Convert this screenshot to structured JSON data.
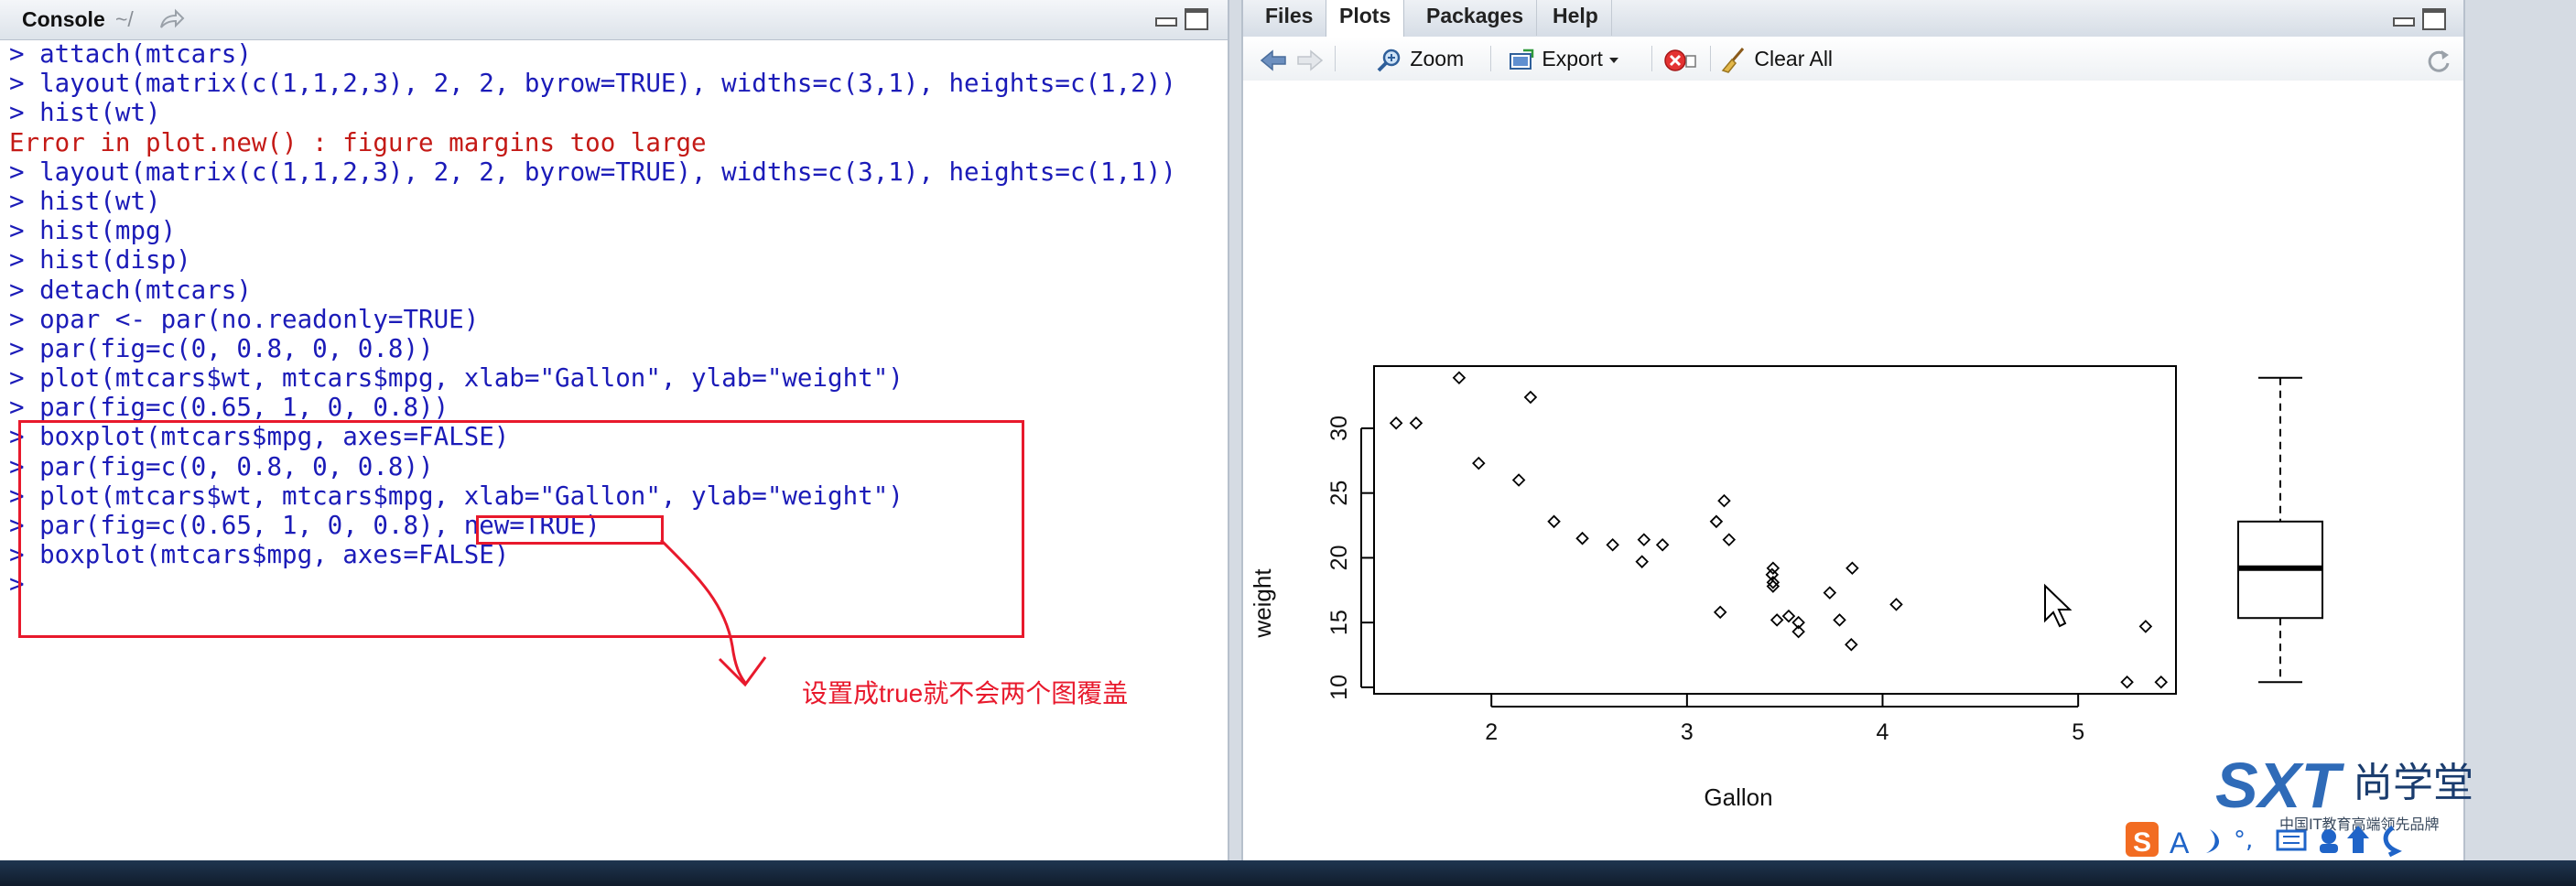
{
  "console": {
    "title": "Console",
    "path": "~/",
    "lines": [
      {
        "text": "> attach(mtcars)",
        "type": "cmd"
      },
      {
        "text": "> layout(matrix(c(1,1,2,3), 2, 2, byrow=TRUE), widths=c(3,1), heights=c(1,2))",
        "type": "cmd"
      },
      {
        "text": "> hist(wt)",
        "type": "cmd"
      },
      {
        "text": "Error in plot.new() : figure margins too large",
        "type": "err"
      },
      {
        "text": "> layout(matrix(c(1,1,2,3), 2, 2, byrow=TRUE), widths=c(3,1), heights=c(1,1))",
        "type": "cmd"
      },
      {
        "text": "> hist(wt)",
        "type": "cmd"
      },
      {
        "text": "> hist(mpg)",
        "type": "cmd"
      },
      {
        "text": "> hist(disp)",
        "type": "cmd"
      },
      {
        "text": "> detach(mtcars)",
        "type": "cmd"
      },
      {
        "text": "> opar <- par(no.readonly=TRUE)",
        "type": "cmd"
      },
      {
        "text": "> par(fig=c(0, 0.8, 0, 0.8))",
        "type": "cmd"
      },
      {
        "text": "> plot(mtcars$wt, mtcars$mpg, xlab=\"Gallon\", ylab=\"weight\")",
        "type": "cmd"
      },
      {
        "text": "> par(fig=c(0.65, 1, 0, 0.8))",
        "type": "cmd"
      },
      {
        "text": "> boxplot(mtcars$mpg, axes=FALSE)",
        "type": "cmd"
      },
      {
        "text": "> par(fig=c(0, 0.8, 0, 0.8))",
        "type": "cmd"
      },
      {
        "text": "> plot(mtcars$wt, mtcars$mpg, xlab=\"Gallon\", ylab=\"weight\")",
        "type": "cmd"
      },
      {
        "text": "> par(fig=c(0.65, 1, 0, 0.8), new=TRUE)",
        "type": "cmd"
      },
      {
        "text": "> boxplot(mtcars$mpg, axes=FALSE)",
        "type": "cmd"
      },
      {
        "text": ">",
        "type": "prompt"
      }
    ],
    "annotation": "设置成true就不会两个图覆盖"
  },
  "plots_pane": {
    "tabs": [
      {
        "label": "Files",
        "active": false
      },
      {
        "label": "Plots",
        "active": true
      },
      {
        "label": "Packages",
        "active": false
      },
      {
        "label": "Help",
        "active": false
      }
    ],
    "toolbar": {
      "zoom": "Zoom",
      "export": "Export",
      "clear_all": "Clear All"
    }
  },
  "chart_data": [
    {
      "type": "scatter",
      "xlabel": "Gallon",
      "ylabel": "weight",
      "xlim": [
        1.4,
        5.5
      ],
      "ylim": [
        9.5,
        34.8
      ],
      "xticks": [
        2,
        3,
        4,
        5
      ],
      "yticks": [
        10,
        15,
        20,
        25,
        30
      ],
      "x": [
        1.513,
        1.615,
        1.835,
        1.935,
        2.14,
        2.2,
        2.32,
        2.465,
        2.62,
        2.77,
        2.78,
        2.875,
        3.15,
        3.17,
        3.19,
        3.215,
        3.435,
        3.44,
        3.44,
        3.44,
        3.46,
        3.52,
        3.57,
        3.57,
        3.73,
        3.78,
        3.84,
        3.845,
        4.07,
        5.25,
        5.345,
        5.424
      ],
      "y": [
        30.4,
        30.4,
        33.9,
        27.3,
        26.0,
        32.4,
        22.8,
        21.5,
        21.0,
        19.7,
        21.4,
        21.0,
        22.8,
        15.8,
        24.4,
        21.4,
        18.7,
        19.2,
        17.8,
        18.1,
        15.2,
        15.5,
        15.0,
        14.3,
        17.3,
        15.2,
        13.3,
        19.2,
        16.4,
        10.4,
        14.7,
        10.4
      ]
    },
    {
      "type": "boxplot",
      "values": {
        "min": 10.4,
        "q1": 15.35,
        "median": 19.2,
        "q3": 22.8,
        "max": 33.9
      }
    }
  ],
  "watermark": {
    "brand": "SXT",
    "name": "尚学堂",
    "tagline": "中国IT教育高端领先品牌"
  }
}
